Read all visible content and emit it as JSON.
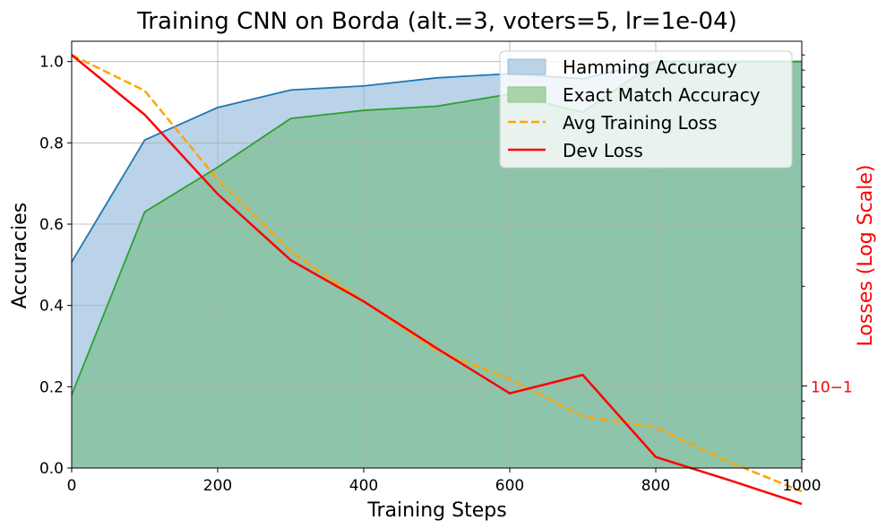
{
  "chart_data": {
    "type": "area",
    "title": "Training CNN on Borda (alt.=3, voters=5, lr=1e-04)",
    "xlabel": "Training Steps",
    "ylabel": "Accuracies",
    "y2label": "Losses (Log Scale)",
    "xlim": [
      0,
      1000
    ],
    "ylim": [
      0,
      1.05
    ],
    "y2lim_log": [
      0.0565,
      1.1
    ],
    "y2scale": "log",
    "grid": true,
    "legend_position": "top-right",
    "x": [
      0,
      100,
      200,
      300,
      400,
      500,
      600,
      700,
      800,
      900,
      1000
    ],
    "x_ticks": [
      "0",
      "200",
      "400",
      "600",
      "800",
      "1000"
    ],
    "x_tick_values": [
      0,
      200,
      400,
      600,
      800,
      1000
    ],
    "y_ticks": [
      "0.0",
      "0.2",
      "0.4",
      "0.6",
      "0.8",
      "1.0"
    ],
    "y_tick_values": [
      0,
      0.2,
      0.4,
      0.6,
      0.8,
      1.0
    ],
    "y2_tick_label": "10−1",
    "y2_tick_value": 0.1,
    "series": [
      {
        "name": "Hamming Accuracy",
        "kind": "area",
        "color": "#1f77b4",
        "fill": "#bad3e9",
        "values": [
          0.507,
          0.807,
          0.887,
          0.93,
          0.94,
          0.96,
          0.97,
          0.958,
          1.0,
          1.0,
          1.0
        ]
      },
      {
        "name": "Exact Match Accuracy",
        "kind": "area",
        "color": "#2ca02c",
        "fill": "#8ec4aa",
        "values": [
          0.18,
          0.63,
          0.74,
          0.86,
          0.88,
          0.89,
          0.92,
          0.875,
          1.0,
          1.0,
          1.0
        ]
      },
      {
        "name": "Avg Training Loss",
        "kind": "line",
        "color": "#ffa500",
        "dashed": true,
        "values": [
          1.0,
          0.78,
          0.42,
          0.255,
          0.18,
          0.128,
          0.105,
          0.081,
          0.075,
          0.059,
          0.048
        ]
      },
      {
        "name": "Dev Loss",
        "kind": "line",
        "color": "#ff0000",
        "dashed": false,
        "values": [
          1.0,
          0.66,
          0.38,
          0.24,
          0.18,
          0.13,
          0.095,
          0.108,
          0.061,
          0.052,
          0.044
        ]
      }
    ],
    "colors": {
      "y2_axis": "#ff0000",
      "grid": "#b0b0b0"
    }
  }
}
